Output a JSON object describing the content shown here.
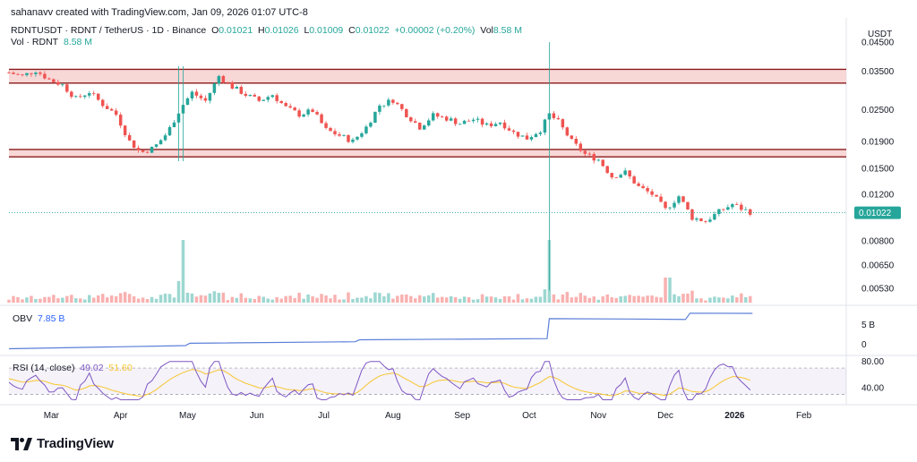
{
  "header": {
    "created_by": "sahanavv created with TradingView.com, Jan 09, 2026 01:07 UTC-8"
  },
  "legend": {
    "symbol": "RDNTUSDT · RDNT / TetherUS · 1D · Binance",
    "open_label": "O",
    "open_value": "0.01021",
    "high_label": "H",
    "high_value": "0.01026",
    "low_label": "L",
    "low_value": "0.01009",
    "close_label": "C",
    "close_value": "0.01022",
    "change_value": "+0.00002 (+0.20%)",
    "vol_label": "Vol",
    "vol_value": "8.58 M",
    "vol_symbol_label": "Vol · RDNT",
    "vol_symbol_value": "8.58 M"
  },
  "currency": "USDT",
  "obv": {
    "label": "OBV",
    "value": "7.85 B"
  },
  "rsi": {
    "label": "RSI (14, close)",
    "value": "49.02",
    "ma_value": "51.60"
  },
  "brand": {
    "name": "TradingView"
  },
  "colors": {
    "up": "#26a69a",
    "down": "#ef5350",
    "zone_fill": "#f8d7d7",
    "zone_line": "#8b1a1a",
    "obv": "#5b7fd8",
    "rsi": "#7e57c2",
    "rsi_ma": "#f7c52e",
    "price_badge": "#26a69a"
  },
  "chart_data": [
    {
      "type": "candlestick",
      "pair": "RDNTUSDT",
      "scale": "log",
      "y_ticks": [
        {
          "value": 0.045,
          "label": "0.04500"
        },
        {
          "value": 0.035,
          "label": "0.03500"
        },
        {
          "value": 0.025,
          "label": "0.02500"
        },
        {
          "value": 0.019,
          "label": "0.01900"
        },
        {
          "value": 0.015,
          "label": "0.01500"
        },
        {
          "value": 0.012,
          "label": "0.01200"
        },
        {
          "value": 0.008,
          "label": "0.00800"
        },
        {
          "value": 0.0065,
          "label": "0.00650"
        },
        {
          "value": 0.0053,
          "label": "0.00530"
        }
      ],
      "last_price": {
        "value": 0.01022,
        "label": "0.01022"
      },
      "resistance_zones": [
        {
          "low": 0.0315,
          "high": 0.0355
        },
        {
          "low": 0.0166,
          "high": 0.0177
        }
      ],
      "x_labels": [
        "Mar",
        "Apr",
        "May",
        "Jun",
        "Jul",
        "Aug",
        "Sep",
        "Oct",
        "Nov",
        "Dec",
        "2026",
        "Feb"
      ],
      "price_path": [
        {
          "date": "2025-02-10",
          "price": 0.0345
        },
        {
          "date": "2025-02-16",
          "price": 0.0335
        },
        {
          "date": "2025-02-22",
          "price": 0.0352
        },
        {
          "date": "2025-02-28",
          "price": 0.0325
        },
        {
          "date": "2025-03-06",
          "price": 0.031
        },
        {
          "date": "2025-03-12",
          "price": 0.0275
        },
        {
          "date": "2025-03-18",
          "price": 0.0292
        },
        {
          "date": "2025-03-24",
          "price": 0.0262
        },
        {
          "date": "2025-03-30",
          "price": 0.024
        },
        {
          "date": "2025-04-05",
          "price": 0.019
        },
        {
          "date": "2025-04-10",
          "price": 0.0172
        },
        {
          "date": "2025-04-16",
          "price": 0.018
        },
        {
          "date": "2025-04-22",
          "price": 0.0205
        },
        {
          "date": "2025-04-28",
          "price": 0.0255
        },
        {
          "date": "2025-05-03",
          "price": 0.029
        },
        {
          "date": "2025-05-09",
          "price": 0.027
        },
        {
          "date": "2025-05-15",
          "price": 0.0335
        },
        {
          "date": "2025-05-21",
          "price": 0.0305
        },
        {
          "date": "2025-05-27",
          "price": 0.0285
        },
        {
          "date": "2025-06-02",
          "price": 0.027
        },
        {
          "date": "2025-06-08",
          "price": 0.0285
        },
        {
          "date": "2025-06-14",
          "price": 0.0255
        },
        {
          "date": "2025-06-20",
          "price": 0.024
        },
        {
          "date": "2025-06-26",
          "price": 0.0248
        },
        {
          "date": "2025-07-02",
          "price": 0.021
        },
        {
          "date": "2025-07-08",
          "price": 0.02
        },
        {
          "date": "2025-07-14",
          "price": 0.019
        },
        {
          "date": "2025-07-20",
          "price": 0.0215
        },
        {
          "date": "2025-07-26",
          "price": 0.026
        },
        {
          "date": "2025-08-01",
          "price": 0.0272
        },
        {
          "date": "2025-08-07",
          "price": 0.024
        },
        {
          "date": "2025-08-13",
          "price": 0.0215
        },
        {
          "date": "2025-08-19",
          "price": 0.0238
        },
        {
          "date": "2025-08-25",
          "price": 0.0232
        },
        {
          "date": "2025-08-31",
          "price": 0.0222
        },
        {
          "date": "2025-09-06",
          "price": 0.023
        },
        {
          "date": "2025-09-12",
          "price": 0.0218
        },
        {
          "date": "2025-09-18",
          "price": 0.0225
        },
        {
          "date": "2025-09-24",
          "price": 0.0205
        },
        {
          "date": "2025-09-30",
          "price": 0.0195
        },
        {
          "date": "2025-10-06",
          "price": 0.021
        },
        {
          "date": "2025-10-10",
          "price": 0.024
        },
        {
          "date": "2025-10-14",
          "price": 0.0225
        },
        {
          "date": "2025-10-20",
          "price": 0.019
        },
        {
          "date": "2025-10-26",
          "price": 0.017
        },
        {
          "date": "2025-11-01",
          "price": 0.0162
        },
        {
          "date": "2025-11-07",
          "price": 0.014
        },
        {
          "date": "2025-11-13",
          "price": 0.0145
        },
        {
          "date": "2025-11-19",
          "price": 0.0128
        },
        {
          "date": "2025-11-25",
          "price": 0.012
        },
        {
          "date": "2025-12-01",
          "price": 0.0105
        },
        {
          "date": "2025-12-07",
          "price": 0.0118
        },
        {
          "date": "2025-12-13",
          "price": 0.0098
        },
        {
          "date": "2025-12-19",
          "price": 0.0095
        },
        {
          "date": "2025-12-25",
          "price": 0.0103
        },
        {
          "date": "2025-12-31",
          "price": 0.011
        },
        {
          "date": "2026-01-05",
          "price": 0.0105
        },
        {
          "date": "2026-01-09",
          "price": 0.01022
        }
      ],
      "wick_extremes": [
        {
          "date": "2025-10-10",
          "high": 0.045,
          "low": 0.0052
        },
        {
          "date": "2025-04-28",
          "high": 0.0365,
          "low": 0.016
        }
      ]
    },
    {
      "type": "line",
      "name": "OBV",
      "y_ticks": [
        {
          "value": 5,
          "label": "5 B"
        },
        {
          "value": 0,
          "label": "0"
        }
      ],
      "units": "B",
      "points": [
        {
          "date": "2025-02-10",
          "value": -1.2
        },
        {
          "date": "2025-04-30",
          "value": -0.4
        },
        {
          "date": "2025-05-02",
          "value": 0.2
        },
        {
          "date": "2025-07-15",
          "value": 0.6
        },
        {
          "date": "2025-07-17",
          "value": 1.1
        },
        {
          "date": "2025-10-09",
          "value": 1.4
        },
        {
          "date": "2025-10-10",
          "value": 6.5
        },
        {
          "date": "2025-11-15",
          "value": 6.4
        },
        {
          "date": "2025-12-10",
          "value": 6.3
        },
        {
          "date": "2025-12-12",
          "value": 7.9
        },
        {
          "date": "2026-01-09",
          "value": 7.85
        }
      ]
    },
    {
      "type": "line",
      "name": "RSI",
      "y_ticks": [
        {
          "value": 80,
          "label": "80.00"
        },
        {
          "value": 40,
          "label": "40.00"
        }
      ],
      "bands": {
        "upper": 70,
        "lower": 30
      }
    }
  ]
}
